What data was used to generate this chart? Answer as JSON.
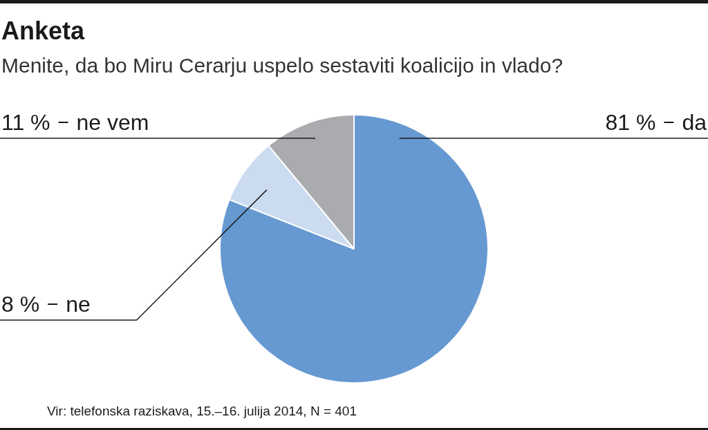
{
  "chart_data": {
    "type": "pie",
    "title": "Anketa",
    "subtitle": "Menite, da bo Miru Cerarju uspelo sestaviti koalicijo in vlado?",
    "categories": [
      "da",
      "ne",
      "ne vem"
    ],
    "values": [
      81,
      8,
      11
    ],
    "colors": [
      "#6699d2",
      "#cbdcf1",
      "#a9abae"
    ],
    "value_labels": [
      "81 %",
      "8 %",
      "11 %"
    ],
    "annotations": [
      "Vir: telefonska raziskava, 15.–16. julija 2014, N = 401"
    ]
  }
}
